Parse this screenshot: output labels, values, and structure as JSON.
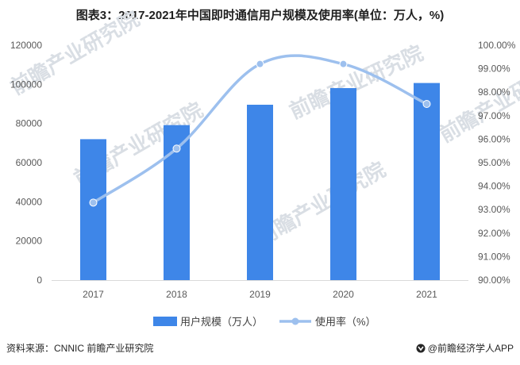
{
  "title": "图表3：2017-2021年中国即时通信用户规模及使用率(单位：万人，%)",
  "footer": {
    "source": "资料来源：CNNIC 前瞻产业研究院",
    "brand": "@前瞻经济学人APP"
  },
  "watermark": "前瞻产业研究院",
  "colors": {
    "bar": "#3e86e8",
    "line": "#9dc0ee",
    "grid": "#d9d9d9"
  },
  "chart_data": {
    "type": "bar",
    "categories": [
      "2017",
      "2018",
      "2019",
      "2020",
      "2021"
    ],
    "series": [
      {
        "name": "用户规模（万人）",
        "type": "bar",
        "axis": "left",
        "values": [
          72000,
          79200,
          89600,
          98100,
          100700
        ]
      },
      {
        "name": "使用率（%）",
        "type": "line",
        "axis": "right",
        "values": [
          93.3,
          95.6,
          99.2,
          99.2,
          97.5
        ]
      }
    ],
    "y_left": {
      "min": 0,
      "max": 120000,
      "step": 20000,
      "ticks": [
        "0",
        "20000",
        "40000",
        "60000",
        "80000",
        "100000",
        "120000"
      ]
    },
    "y_right": {
      "min": 90,
      "max": 100,
      "step": 1,
      "ticks": [
        "90.00%",
        "91.00%",
        "92.00%",
        "93.00%",
        "94.00%",
        "95.00%",
        "96.00%",
        "97.00%",
        "98.00%",
        "99.00%",
        "100.00%"
      ]
    },
    "grid": false,
    "legend": "bottom"
  }
}
